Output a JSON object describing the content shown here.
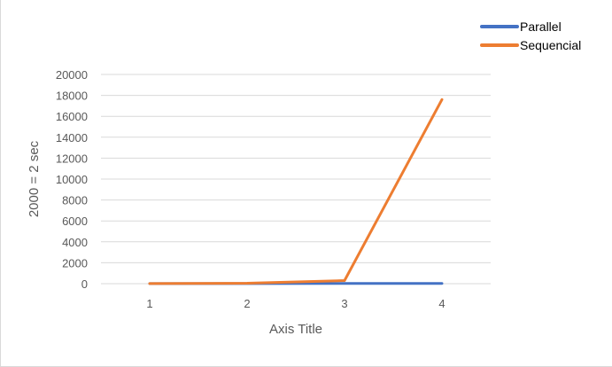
{
  "chart_data": {
    "type": "line",
    "title": "",
    "xlabel": "Axis Title",
    "ylabel": "2000 = 2 sec",
    "categories": [
      "1",
      "2",
      "3",
      "4"
    ],
    "ylim": [
      0,
      20000
    ],
    "yticks": [
      0,
      2000,
      4000,
      6000,
      8000,
      10000,
      12000,
      14000,
      16000,
      18000,
      20000
    ],
    "grid": true,
    "legend_position": "top-right",
    "series": [
      {
        "name": "Parallel",
        "color": "#4472c4",
        "values": [
          5,
          8,
          15,
          25
        ]
      },
      {
        "name": "Sequencial",
        "color": "#ed7d31",
        "values": [
          10,
          40,
          300,
          17600
        ]
      }
    ]
  }
}
